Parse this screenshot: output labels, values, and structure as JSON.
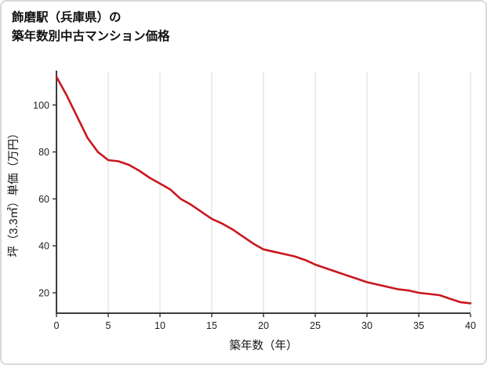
{
  "chart_data": {
    "type": "line",
    "title_line1": "飾磨駅（兵庫県）の",
    "title_line2": "築年数別中古マンション価格",
    "xlabel": "築年数（年）",
    "ylabel": "坪（3.3㎡）単価（万円）",
    "x": [
      0,
      1,
      2,
      3,
      4,
      5,
      6,
      7,
      8,
      9,
      10,
      11,
      12,
      13,
      14,
      15,
      16,
      17,
      18,
      19,
      20,
      21,
      22,
      23,
      24,
      25,
      26,
      27,
      28,
      29,
      30,
      31,
      32,
      33,
      34,
      35,
      36,
      37,
      38,
      39,
      40
    ],
    "values": [
      112,
      104,
      95,
      86,
      80,
      76.5,
      76,
      74.5,
      72,
      69,
      66.5,
      64,
      60,
      57.5,
      54.5,
      51.5,
      49.5,
      47,
      44,
      41,
      38.5,
      37.5,
      36.5,
      35.5,
      34,
      32,
      30.5,
      29,
      27.5,
      26,
      24.5,
      23.5,
      22.5,
      21.5,
      21,
      20,
      19.5,
      19,
      17.5,
      16,
      15.5
    ],
    "xlim": [
      0,
      40
    ],
    "ylim": [
      11.3,
      114.3
    ],
    "xticks": [
      0,
      5,
      10,
      15,
      20,
      25,
      30,
      35,
      40
    ],
    "yticks": [
      20,
      40,
      60,
      80,
      100
    ],
    "grid": "vertical-only",
    "legend": "none",
    "line_color": "#c9171e",
    "axis_color": "#3c3c3c",
    "grid_color": "#d9d9d9",
    "tick_label_color": "#222222",
    "axis_label_color": "#111111"
  }
}
